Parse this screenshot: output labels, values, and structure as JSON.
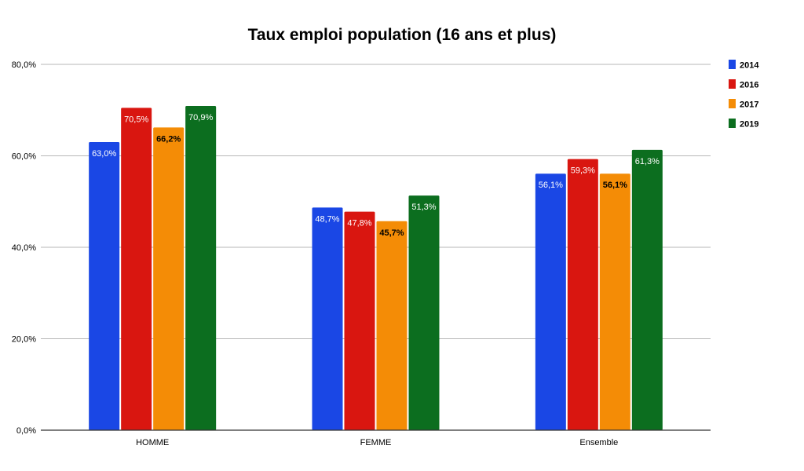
{
  "chart_data": {
    "type": "bar",
    "title": "Taux emploi population (16 ans et plus)",
    "xlabel": "",
    "ylabel": "",
    "categories": [
      "HOMME",
      "FEMME",
      "Ensemble"
    ],
    "ylim": [
      0,
      80
    ],
    "yticks": [
      "0,0%",
      "20,0%",
      "40,0%",
      "60,0%",
      "80,0%"
    ],
    "ytick_values": [
      0,
      20,
      40,
      60,
      80
    ],
    "grid": true,
    "legend_position": "right",
    "series": [
      {
        "name": "2014",
        "color": "#1a47e5",
        "values": [
          63.0,
          48.7,
          56.1
        ],
        "labels": [
          "63,0%",
          "48,7%",
          "56,1%"
        ],
        "label_color": "#ffffff"
      },
      {
        "name": "2016",
        "color": "#d91610",
        "values": [
          70.5,
          47.8,
          59.3
        ],
        "labels": [
          "70,5%",
          "47,8%",
          "59,3%"
        ],
        "label_color": "#ffffff"
      },
      {
        "name": "2017",
        "color": "#f48c06",
        "values": [
          66.2,
          45.7,
          56.1
        ],
        "labels": [
          "66,2%",
          "45,7%",
          "56,1%"
        ],
        "label_color": "#000000"
      },
      {
        "name": "2019",
        "color": "#0c6e1f",
        "values": [
          70.9,
          51.3,
          61.3
        ],
        "labels": [
          "70,9%",
          "51,3%",
          "61,3%"
        ],
        "label_color": "#ffffff"
      }
    ]
  }
}
